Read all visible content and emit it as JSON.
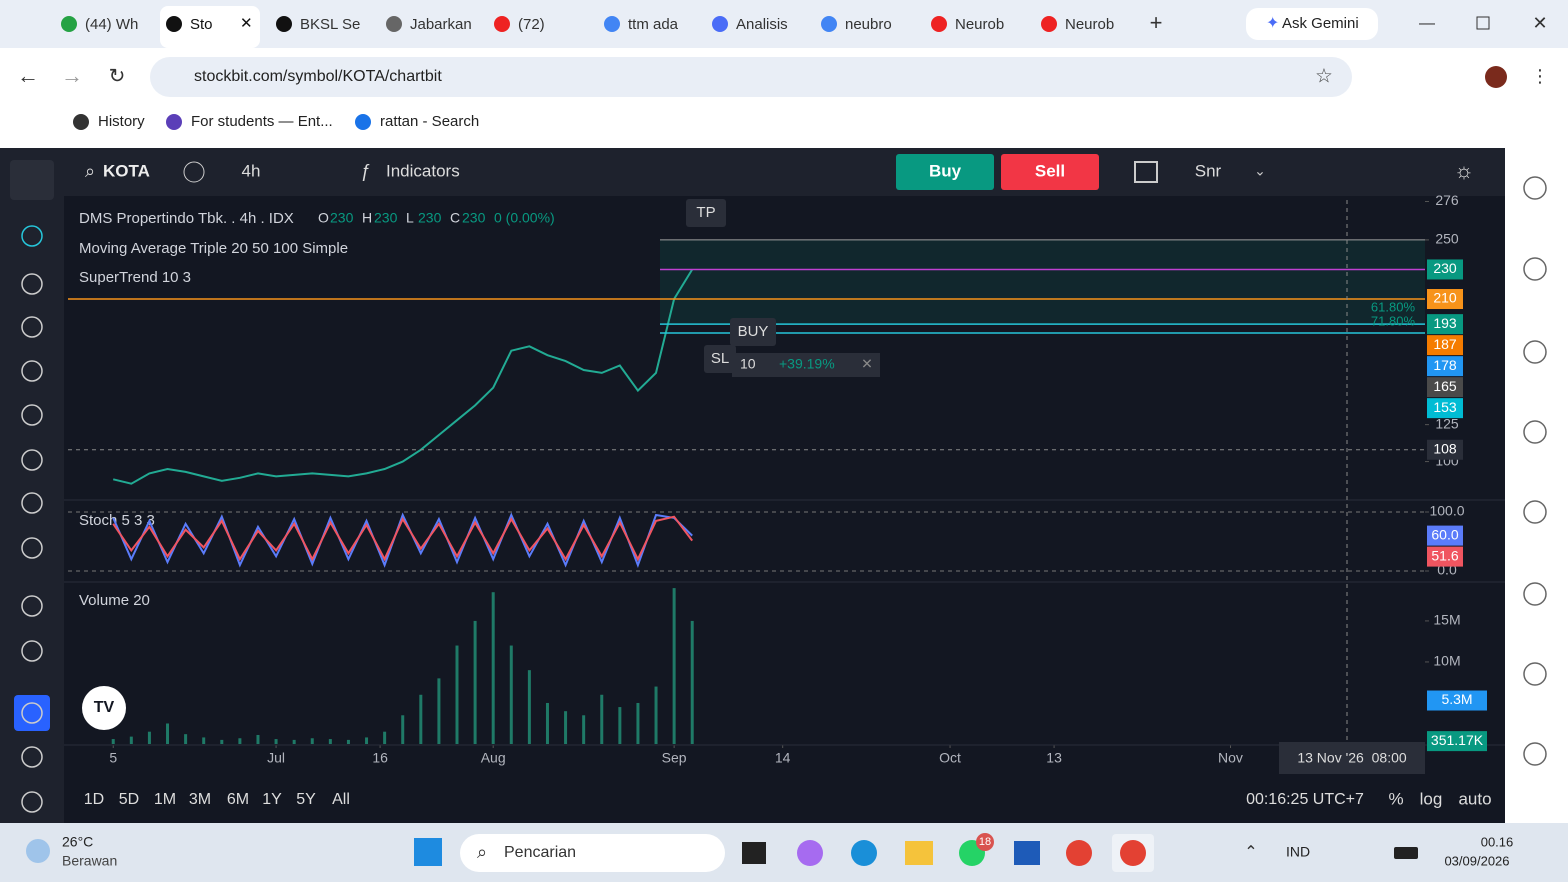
{
  "browser": {
    "tabs": [
      "(44) Wh",
      "Sto",
      "BKSL Se",
      "Jabarkan",
      "(72)",
      "ttm ada",
      "Analisis",
      "neubro",
      "Neurob",
      "Neurob"
    ],
    "ask_gemini": "Ask Gemini",
    "url": "stockbit.com/symbol/KOTA/chartbit",
    "bookmarks": [
      "History",
      "For students — Ent...",
      "rattan - Search"
    ]
  },
  "toolbar": {
    "symbol": "KOTA",
    "interval": "4h",
    "indicators": "Indicators",
    "buy": "Buy",
    "sell": "Sell",
    "template": "Snr"
  },
  "legend": {
    "name": "DMS Propertindo Tbk. . 4h . IDX",
    "ohlc": [
      {
        "label": "O",
        "value": 230
      },
      {
        "label": "H",
        "value": 230
      },
      {
        "label": "L",
        "value": 230
      },
      {
        "label": "C",
        "value": 230
      }
    ],
    "change": "0 (0.00%)",
    "studies": [
      "Moving Average Triple 20 50 100 Simple",
      "SuperTrend 10 3"
    ]
  },
  "trade": {
    "tp": "TP",
    "buy": "BUY",
    "sl": "SL",
    "qty": 10,
    "pnl": "+39.19%"
  },
  "fib": [
    "61.80%",
    "71.80%"
  ],
  "crosshair_date": "13 Nov '26  08:00",
  "ranges": [
    "1D",
    "5D",
    "1M",
    "3M",
    "6M",
    "1Y",
    "5Y",
    "All"
  ],
  "clock": "00:16:25 UTC+7",
  "scale_options": [
    "%",
    "log",
    "auto"
  ],
  "taskbar": {
    "temperature": "26°C",
    "weather": "Berawan",
    "search": "Pencarian",
    "whatsapp_badge": 18,
    "language": "IND",
    "time": "00.16",
    "date": "03/09/2026"
  },
  "chart_data": [
    {
      "type": "line",
      "title": "KOTA",
      "xlim": [
        0,
        300
      ],
      "xticks": [
        {
          "value": 10,
          "label": "5"
        },
        {
          "value": 46,
          "label": "Jul"
        },
        {
          "value": 69,
          "label": "16"
        },
        {
          "value": 94,
          "label": "Aug"
        },
        {
          "value": 134,
          "label": "Sep"
        },
        {
          "value": 158,
          "label": "14"
        },
        {
          "value": 195,
          "label": "Oct"
        },
        {
          "value": 218,
          "label": "13"
        },
        {
          "value": 257,
          "label": "Nov"
        }
      ],
      "x": [
        10,
        14,
        18,
        22,
        26,
        30,
        34,
        38,
        42,
        46,
        50,
        54,
        58,
        62,
        66,
        70,
        74,
        78,
        82,
        86,
        90,
        94,
        98,
        102,
        106,
        110,
        114,
        118,
        122,
        126,
        130,
        134,
        138
      ],
      "series": [
        {
          "name": "KOTA",
          "color": "#22ab94",
          "values": [
            88,
            85,
            92,
            95,
            93,
            90,
            87,
            89,
            92,
            90,
            91,
            92,
            91,
            90,
            92,
            95,
            100,
            108,
            118,
            128,
            138,
            150,
            175,
            178,
            172,
            168,
            162,
            160,
            165,
            148,
            160,
            210,
            230
          ]
        }
      ],
      "ylim": [
        74,
        277
      ],
      "yticks": [
        100,
        125,
        250,
        276
      ],
      "tags": [
        {
          "value": 230,
          "color": "#089981",
          "line": "#c040d0"
        },
        {
          "value": 210,
          "color": "#f7931a",
          "line": "#f7931a"
        },
        {
          "value": 193,
          "color": "#089981",
          "line": "#26c6da"
        },
        {
          "value": 187,
          "color": "#f57c00",
          "line": "#26c6da"
        },
        {
          "value": 178,
          "color": "#2196f3"
        },
        {
          "value": 165,
          "color": "#4a4a4a"
        },
        {
          "value": 153,
          "color": "#00bcd4"
        },
        {
          "value": 108,
          "color": "#2a2e39"
        }
      ]
    },
    {
      "type": "line",
      "title": "Stoch 5 3 3",
      "xlim": [
        0,
        300
      ],
      "x": [
        10,
        14,
        18,
        22,
        26,
        30,
        34,
        38,
        42,
        46,
        50,
        54,
        58,
        62,
        66,
        70,
        74,
        78,
        82,
        86,
        90,
        94,
        98,
        102,
        106,
        110,
        114,
        118,
        122,
        126,
        130,
        134,
        138
      ],
      "series": [
        {
          "name": "%K",
          "color": "#5b7cfa",
          "values": [
            90,
            20,
            85,
            15,
            80,
            30,
            92,
            10,
            75,
            25,
            88,
            12,
            90,
            20,
            85,
            10,
            95,
            30,
            88,
            15,
            90,
            20,
            95,
            25,
            80,
            10,
            85,
            15,
            90,
            10,
            95,
            90,
            60
          ]
        },
        {
          "name": "%D",
          "color": "#f05560",
          "values": [
            80,
            35,
            75,
            25,
            70,
            40,
            85,
            20,
            68,
            35,
            80,
            20,
            82,
            30,
            78,
            20,
            88,
            38,
            80,
            25,
            82,
            30,
            88,
            35,
            72,
            20,
            78,
            25,
            82,
            20,
            85,
            92,
            51.6
          ]
        }
      ],
      "ylim": [
        0,
        100
      ],
      "yticks": [
        {
          "value": 0,
          "label": "0.0"
        },
        {
          "value": 100,
          "label": "100.0"
        }
      ],
      "tags": [
        {
          "value": 60,
          "label": "60.0",
          "color": "#5b7cfa"
        },
        {
          "value": 51.6,
          "label": "51.6",
          "color": "#f05560"
        }
      ]
    },
    {
      "type": "bar",
      "title": "Volume 20",
      "xlim": [
        0,
        300
      ],
      "x": [
        10,
        14,
        18,
        22,
        26,
        30,
        34,
        38,
        42,
        46,
        50,
        54,
        58,
        62,
        66,
        70,
        74,
        78,
        82,
        86,
        90,
        94,
        98,
        102,
        106,
        110,
        114,
        118,
        122,
        126,
        130,
        134,
        138
      ],
      "values": [
        600000,
        900000,
        1500000,
        2500000,
        1200000,
        800000,
        500000,
        700000,
        1100000,
        600000,
        500000,
        700000,
        600000,
        500000,
        800000,
        1500000,
        3500000,
        6000000,
        8000000,
        12000000,
        15000000,
        18500000,
        12000000,
        9000000,
        5000000,
        4000000,
        3500000,
        6000000,
        4500000,
        5000000,
        7000000,
        19000000,
        15000000
      ],
      "color": "#1f7a67",
      "ylim": [
        0,
        19500000
      ],
      "yticks": [
        {
          "value": 10000000,
          "label": "10M"
        },
        {
          "value": 15000000,
          "label": "15M"
        }
      ],
      "tags": [
        {
          "value": 5300000,
          "label": "5.3M",
          "color": "#2196f3"
        },
        {
          "value": 351170,
          "label": "351.17K",
          "color": "#089981"
        }
      ]
    }
  ]
}
